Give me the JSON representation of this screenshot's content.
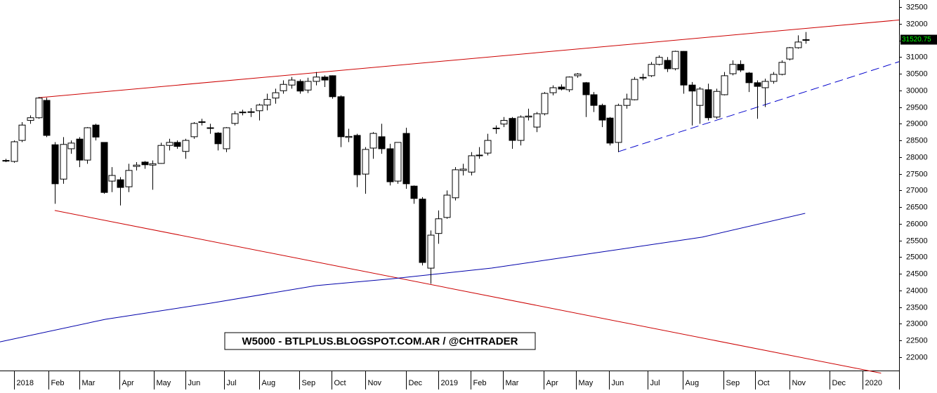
{
  "chart_data": {
    "type": "candlestick",
    "title": "W5000 - BTLPLUS.BLOGSPOT.COM.AR / @CHTRADER",
    "candles": {
      "open": [
        27880,
        27870,
        28500,
        29100,
        29180,
        29700,
        28370,
        27340,
        28250,
        28540,
        27910,
        28960,
        28440,
        27280,
        27320,
        27110,
        27720,
        27850,
        27760,
        27810,
        28350,
        28440,
        28170,
        28610,
        29050,
        28880,
        28720,
        28250,
        29010,
        29330,
        29340,
        29390,
        29560,
        29770,
        29990,
        30160,
        30270,
        30010,
        30270,
        30400,
        30440,
        29810,
        28590,
        28650,
        27490,
        28270,
        28610,
        28250,
        27280,
        28710,
        27130,
        26740,
        24670,
        25710,
        26190,
        26780,
        27600,
        27550,
        28050,
        28120,
        28850,
        28990,
        29160,
        28500,
        29200,
        28900,
        29300,
        29930,
        30100,
        30020,
        30440,
        30230,
        29870,
        29550,
        29170,
        28440,
        29550,
        29720,
        30380,
        30440,
        30780,
        30900,
        30650,
        31170,
        30160,
        29550,
        30020,
        29200,
        29870,
        30500,
        30780,
        30520,
        30230,
        30080,
        30270,
        30480,
        30940,
        31280,
        31510
      ],
      "high": [
        27950,
        28500,
        29050,
        29250,
        29800,
        29780,
        28450,
        28600,
        28500,
        28600,
        28900,
        29000,
        28450,
        27700,
        27400,
        27800,
        27850,
        27880,
        27900,
        28430,
        28550,
        28500,
        28550,
        29050,
        29150,
        29000,
        28750,
        28900,
        29380,
        29420,
        29470,
        29600,
        29900,
        30050,
        30300,
        30400,
        30330,
        30380,
        30550,
        30450,
        30450,
        29850,
        28850,
        28700,
        28300,
        28750,
        29000,
        28400,
        28450,
        28880,
        27150,
        26800,
        25800,
        26400,
        27000,
        27700,
        27800,
        28150,
        28300,
        28700,
        28950,
        29200,
        29200,
        29250,
        29450,
        29350,
        29950,
        30150,
        30180,
        30420,
        30520,
        30250,
        29950,
        29600,
        29200,
        29600,
        29900,
        30400,
        30500,
        30850,
        31050,
        31000,
        31190,
        31180,
        30250,
        30100,
        30200,
        30050,
        30550,
        30900,
        30900,
        30550,
        30300,
        30350,
        30550,
        30900,
        31300,
        31650,
        31750
      ],
      "low": [
        27850,
        27830,
        28450,
        29000,
        29150,
        28600,
        26600,
        27200,
        28100,
        27700,
        27800,
        28500,
        26900,
        26950,
        26550,
        26950,
        27600,
        27650,
        27020,
        27800,
        28200,
        28250,
        27950,
        28550,
        28950,
        28700,
        28200,
        28150,
        28950,
        29250,
        29200,
        29100,
        29400,
        29600,
        29900,
        30050,
        29900,
        29920,
        30150,
        30100,
        29750,
        28300,
        28450,
        27100,
        26900,
        27950,
        28100,
        27150,
        27200,
        27050,
        26600,
        24750,
        24200,
        25400,
        26150,
        26700,
        27450,
        27450,
        27950,
        28050,
        28700,
        28900,
        28250,
        28350,
        29100,
        28750,
        29250,
        29850,
        30000,
        29950,
        30380,
        29200,
        29350,
        28900,
        28350,
        28150,
        29450,
        29700,
        30300,
        30400,
        30750,
        30550,
        30600,
        29900,
        28950,
        29000,
        29100,
        29150,
        29850,
        30450,
        30550,
        29950,
        29150,
        29500,
        30200,
        30450,
        30900,
        31250,
        31400
      ],
      "close": [
        27900,
        28460,
        28960,
        29180,
        29770,
        28650,
        27200,
        28380,
        28420,
        27910,
        28880,
        28600,
        26940,
        27450,
        27090,
        27600,
        27760,
        27770,
        27800,
        28350,
        28440,
        28320,
        28500,
        29010,
        29060,
        28860,
        28400,
        28880,
        29300,
        29350,
        29360,
        29560,
        29730,
        29930,
        30180,
        30310,
        29980,
        30270,
        30400,
        30310,
        29810,
        28610,
        28620,
        27470,
        28230,
        28710,
        28250,
        27260,
        28440,
        27200,
        26760,
        24840,
        25660,
        26150,
        26860,
        27620,
        27640,
        28040,
        28060,
        28500,
        28870,
        29100,
        28500,
        29200,
        29230,
        29300,
        29910,
        30080,
        30040,
        30400,
        30490,
        29870,
        29550,
        29110,
        28420,
        29550,
        29740,
        30330,
        30390,
        30780,
        30990,
        30650,
        31170,
        30160,
        29980,
        30040,
        29180,
        29970,
        30440,
        30780,
        30610,
        30230,
        30120,
        30270,
        30480,
        30840,
        31280,
        31450,
        31520.75
      ]
    },
    "lines": [
      {
        "color": "#cc0000",
        "dash": false,
        "x": [
          4.0,
          109.4
        ],
        "values": [
          29780,
          32110
        ]
      },
      {
        "color": "#cc0000",
        "dash": false,
        "x": [
          6.0,
          107.2
        ],
        "values": [
          26400,
          21520
        ]
      },
      {
        "color": "#0000cc",
        "dash": true,
        "x": [
          75.0,
          109.4
        ],
        "values": [
          28160,
          30860
        ]
      },
      {
        "color": "#0000aa",
        "dash": false,
        "x": [
          -0.7,
          12.2,
          25.1,
          38.0,
          47.5,
          59.5,
          72.4,
          85.3,
          97.9
        ],
        "values": [
          22460,
          23137,
          23620,
          24147,
          24357,
          24673,
          25136,
          25599,
          26314
        ]
      }
    ],
    "xlim": [
      -0.7,
      109.4
    ],
    "xticks": [
      {
        "value": 1.0,
        "label": "2018"
      },
      {
        "value": 5.2,
        "label": "Feb"
      },
      {
        "value": 9.0,
        "label": "Mar"
      },
      {
        "value": 13.9,
        "label": "Apr"
      },
      {
        "value": 18.1,
        "label": "May"
      },
      {
        "value": 22.0,
        "label": "Jun"
      },
      {
        "value": 26.7,
        "label": "Jul"
      },
      {
        "value": 31.0,
        "label": "Aug"
      },
      {
        "value": 35.9,
        "label": "Sep"
      },
      {
        "value": 39.9,
        "label": "Oct"
      },
      {
        "value": 44.0,
        "label": "Nov"
      },
      {
        "value": 49.0,
        "label": "Dec"
      },
      {
        "value": 53.0,
        "label": "2019"
      },
      {
        "value": 56.9,
        "label": "Feb"
      },
      {
        "value": 60.9,
        "label": "Mar"
      },
      {
        "value": 65.9,
        "label": "Apr"
      },
      {
        "value": 69.8,
        "label": "May"
      },
      {
        "value": 73.9,
        "label": "Jun"
      },
      {
        "value": 78.6,
        "label": "Jul"
      },
      {
        "value": 82.9,
        "label": "Aug"
      },
      {
        "value": 87.9,
        "label": "Sep"
      },
      {
        "value": 91.8,
        "label": "Oct"
      },
      {
        "value": 96.0,
        "label": "Nov"
      },
      {
        "value": 100.9,
        "label": "Dec"
      },
      {
        "value": 104.9,
        "label": "2020"
      }
    ],
    "ylim": [
      21600,
      32710
    ],
    "yticks": [
      22000,
      22500,
      23000,
      23500,
      24000,
      24500,
      25000,
      25500,
      26000,
      26500,
      27000,
      27500,
      28000,
      28500,
      29000,
      29500,
      30000,
      30500,
      31000,
      31500,
      32000,
      32500
    ]
  }
}
